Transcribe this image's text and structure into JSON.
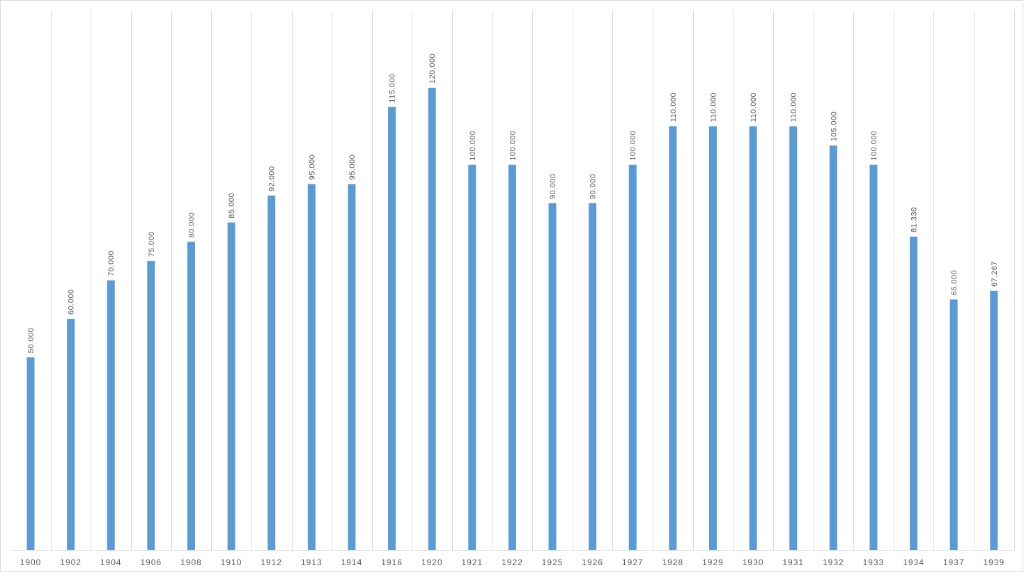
{
  "chart_data": {
    "type": "bar",
    "title": "",
    "xlabel": "",
    "ylabel": "",
    "categories": [
      "1900",
      "1902",
      "1904",
      "1906",
      "1908",
      "1910",
      "1912",
      "1913",
      "1914",
      "1916",
      "1920",
      "1921",
      "1922",
      "1925",
      "1926",
      "1927",
      "1928",
      "1929",
      "1930",
      "1931",
      "1932",
      "1933",
      "1934",
      "1937",
      "1939"
    ],
    "values": [
      50000,
      60000,
      70000,
      75000,
      80000,
      85000,
      92000,
      95000,
      95000,
      115000,
      120000,
      100000,
      100000,
      90000,
      90000,
      100000,
      110000,
      110000,
      110000,
      110000,
      105000,
      100000,
      81330,
      65000,
      67267
    ],
    "data_labels": [
      "50.000",
      "60.000",
      "70.000",
      "75.000",
      "80.000",
      "85.000",
      "92.000",
      "95.000",
      "95.000",
      "115.000",
      "120.000",
      "100.000",
      "100.000",
      "90.000",
      "90.000",
      "100.000",
      "110.000",
      "110.000",
      "110.000",
      "110.000",
      "105.000",
      "100.000",
      "81.330",
      "65.000",
      "67.267"
    ],
    "ylim": [
      0,
      140000
    ],
    "grid": "vertical category separators",
    "legend": "none",
    "colors": {
      "bar": "#5b9bd5",
      "grid": "#d9d9d9",
      "text": "#595959"
    }
  }
}
